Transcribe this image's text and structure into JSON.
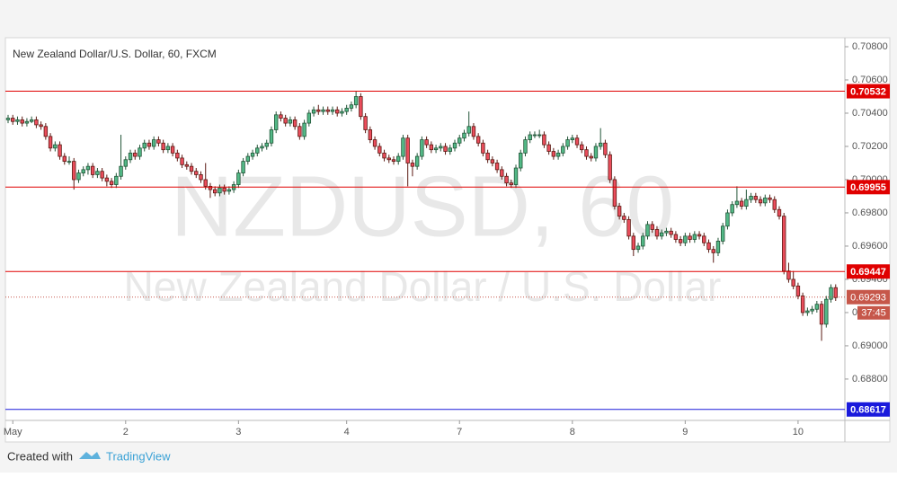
{
  "chart_data": {
    "type": "candlestick",
    "title": "New Zealand Dollar/U.S. Dollar, 60, FXCM",
    "watermark": "NZDUSD, 60",
    "watermark_subtitle": "New Zealand Dollar / U.S. Dollar",
    "up_color": "#53b987",
    "down_color": "#eb4d5c",
    "ylim": [
      0.68551,
      0.70854
    ],
    "yticks": [
      {
        "value": 0.708,
        "label": "0.70800"
      },
      {
        "value": 0.706,
        "label": "0.70600"
      },
      {
        "value": 0.704,
        "label": "0.70400"
      },
      {
        "value": 0.702,
        "label": "0.70200"
      },
      {
        "value": 0.7,
        "label": "0.70000"
      },
      {
        "value": 0.698,
        "label": "0.69800"
      },
      {
        "value": 0.696,
        "label": "0.69600"
      },
      {
        "value": 0.694,
        "label": "0.69400"
      },
      {
        "value": 0.692,
        "label": "0.69200"
      },
      {
        "value": 0.69,
        "label": "0.69000"
      },
      {
        "value": 0.688,
        "label": "0.68800"
      }
    ],
    "xlim": [
      0,
      177
    ],
    "xticks": [
      {
        "value": 1,
        "label": "May"
      },
      {
        "value": 25,
        "label": "2"
      },
      {
        "value": 49,
        "label": "3"
      },
      {
        "value": 72,
        "label": "4"
      },
      {
        "value": 96,
        "label": "7"
      },
      {
        "value": 120,
        "label": "8"
      },
      {
        "value": 144,
        "label": "9"
      },
      {
        "value": 168,
        "label": "10"
      }
    ],
    "hlines": [
      {
        "value": 0.70532,
        "color": "#e00000"
      },
      {
        "value": 0.69955,
        "color": "#e00000"
      },
      {
        "value": 0.69447,
        "color": "#e00000"
      },
      {
        "value": 0.68617,
        "color": "#1a1adc"
      }
    ],
    "last_price": {
      "value": 0.69293,
      "color": "#c6574a",
      "countdown": "37:45"
    },
    "ohlc": [
      [
        0.7036,
        0.7039,
        0.7034,
        0.7037
      ],
      [
        0.7037,
        0.7039,
        0.7033,
        0.7035
      ],
      [
        0.7035,
        0.7038,
        0.7033,
        0.7036
      ],
      [
        0.7036,
        0.7038,
        0.7032,
        0.7034
      ],
      [
        0.7034,
        0.7037,
        0.7032,
        0.7035
      ],
      [
        0.7035,
        0.7038,
        0.7034,
        0.7036
      ],
      [
        0.7036,
        0.7038,
        0.7031,
        0.7033
      ],
      [
        0.7033,
        0.7035,
        0.703,
        0.7032
      ],
      [
        0.7032,
        0.7034,
        0.7024,
        0.7026
      ],
      [
        0.7026,
        0.7028,
        0.7017,
        0.7019
      ],
      [
        0.7019,
        0.7023,
        0.7017,
        0.7021
      ],
      [
        0.7021,
        0.7023,
        0.7012,
        0.7014
      ],
      [
        0.7014,
        0.7016,
        0.7009,
        0.7011
      ],
      [
        0.7011,
        0.7014,
        0.7009,
        0.7011
      ],
      [
        0.7011,
        0.7013,
        0.6994,
        0.7
      ],
      [
        0.7,
        0.7006,
        0.6998,
        0.7004
      ],
      [
        0.7004,
        0.7008,
        0.7002,
        0.7006
      ],
      [
        0.7006,
        0.701,
        0.7003,
        0.7008
      ],
      [
        0.7008,
        0.701,
        0.7001,
        0.7003
      ],
      [
        0.7003,
        0.7007,
        0.7001,
        0.7005
      ],
      [
        0.7005,
        0.7007,
        0.6999,
        0.7001
      ],
      [
        0.7001,
        0.7003,
        0.6996,
        0.6999
      ],
      [
        0.6999,
        0.7001,
        0.6995,
        0.6997
      ],
      [
        0.6997,
        0.7004,
        0.6995,
        0.7002
      ],
      [
        0.7002,
        0.7027,
        0.7,
        0.7008
      ],
      [
        0.7008,
        0.7014,
        0.7006,
        0.7012
      ],
      [
        0.7012,
        0.7018,
        0.701,
        0.7016
      ],
      [
        0.7016,
        0.7018,
        0.7012,
        0.7014
      ],
      [
        0.7014,
        0.7021,
        0.7012,
        0.7019
      ],
      [
        0.7019,
        0.7024,
        0.7017,
        0.7022
      ],
      [
        0.7022,
        0.7024,
        0.7018,
        0.702
      ],
      [
        0.702,
        0.7026,
        0.7018,
        0.7024
      ],
      [
        0.7024,
        0.7026,
        0.702,
        0.7022
      ],
      [
        0.7022,
        0.7024,
        0.7016,
        0.7018
      ],
      [
        0.7018,
        0.7022,
        0.7016,
        0.702
      ],
      [
        0.702,
        0.7022,
        0.7014,
        0.7016
      ],
      [
        0.7016,
        0.7018,
        0.7011,
        0.7013
      ],
      [
        0.7013,
        0.7015,
        0.7007,
        0.7009
      ],
      [
        0.7009,
        0.7011,
        0.7006,
        0.7008
      ],
      [
        0.7008,
        0.701,
        0.7003,
        0.7005
      ],
      [
        0.7005,
        0.7007,
        0.7001,
        0.7003
      ],
      [
        0.7003,
        0.7005,
        0.6998,
        0.7
      ],
      [
        0.7,
        0.701,
        0.6994,
        0.6996
      ],
      [
        0.6996,
        0.6998,
        0.6989,
        0.6994
      ],
      [
        0.6994,
        0.6996,
        0.699,
        0.6992
      ],
      [
        0.6992,
        0.6997,
        0.699,
        0.6995
      ],
      [
        0.6995,
        0.6997,
        0.6991,
        0.6993
      ],
      [
        0.6993,
        0.6996,
        0.6991,
        0.6994
      ],
      [
        0.6994,
        0.6999,
        0.6992,
        0.6997
      ],
      [
        0.6997,
        0.7006,
        0.6995,
        0.7004
      ],
      [
        0.7004,
        0.7013,
        0.7002,
        0.7011
      ],
      [
        0.7011,
        0.7016,
        0.7009,
        0.7014
      ],
      [
        0.7014,
        0.7018,
        0.7012,
        0.7016
      ],
      [
        0.7016,
        0.7021,
        0.7014,
        0.7019
      ],
      [
        0.7019,
        0.7022,
        0.7017,
        0.702
      ],
      [
        0.702,
        0.7024,
        0.7018,
        0.7022
      ],
      [
        0.7022,
        0.7032,
        0.702,
        0.703
      ],
      [
        0.703,
        0.7041,
        0.7028,
        0.7039
      ],
      [
        0.7039,
        0.7041,
        0.7035,
        0.7037
      ],
      [
        0.7037,
        0.7039,
        0.7032,
        0.7034
      ],
      [
        0.7034,
        0.7038,
        0.7032,
        0.7036
      ],
      [
        0.7036,
        0.7038,
        0.703,
        0.7032
      ],
      [
        0.7032,
        0.7034,
        0.7024,
        0.7026
      ],
      [
        0.7026,
        0.7036,
        0.7024,
        0.7034
      ],
      [
        0.7034,
        0.7042,
        0.7032,
        0.704
      ],
      [
        0.704,
        0.7044,
        0.7038,
        0.7042
      ],
      [
        0.7042,
        0.7045,
        0.7039,
        0.7041
      ],
      [
        0.7041,
        0.7044,
        0.7039,
        0.7042
      ],
      [
        0.7042,
        0.7044,
        0.7039,
        0.7041
      ],
      [
        0.7041,
        0.7044,
        0.7039,
        0.7042
      ],
      [
        0.7042,
        0.7044,
        0.7038,
        0.704
      ],
      [
        0.704,
        0.7043,
        0.7038,
        0.7041
      ],
      [
        0.7041,
        0.7045,
        0.7039,
        0.7043
      ],
      [
        0.7043,
        0.7047,
        0.7041,
        0.7045
      ],
      [
        0.7045,
        0.7053,
        0.7043,
        0.705
      ],
      [
        0.705,
        0.7052,
        0.7036,
        0.7038
      ],
      [
        0.7038,
        0.704,
        0.7028,
        0.703
      ],
      [
        0.703,
        0.7032,
        0.7022,
        0.7024
      ],
      [
        0.7024,
        0.7026,
        0.7018,
        0.702
      ],
      [
        0.702,
        0.7022,
        0.7014,
        0.7016
      ],
      [
        0.7016,
        0.7018,
        0.7011,
        0.7013
      ],
      [
        0.7013,
        0.7015,
        0.701,
        0.7012
      ],
      [
        0.7012,
        0.7014,
        0.7009,
        0.7011
      ],
      [
        0.7011,
        0.7016,
        0.7009,
        0.7014
      ],
      [
        0.7014,
        0.7027,
        0.7012,
        0.7025
      ],
      [
        0.7025,
        0.7027,
        0.6996,
        0.701
      ],
      [
        0.701,
        0.7012,
        0.7002,
        0.7008
      ],
      [
        0.7008,
        0.7016,
        0.7006,
        0.7014
      ],
      [
        0.7014,
        0.7026,
        0.7012,
        0.7024
      ],
      [
        0.7024,
        0.7026,
        0.7019,
        0.7021
      ],
      [
        0.7021,
        0.7023,
        0.7016,
        0.7018
      ],
      [
        0.7018,
        0.7021,
        0.7016,
        0.7019
      ],
      [
        0.7019,
        0.7022,
        0.7017,
        0.702
      ],
      [
        0.702,
        0.7022,
        0.7015,
        0.7017
      ],
      [
        0.7017,
        0.7021,
        0.7015,
        0.7019
      ],
      [
        0.7019,
        0.7024,
        0.7017,
        0.7022
      ],
      [
        0.7022,
        0.7027,
        0.702,
        0.7025
      ],
      [
        0.7025,
        0.703,
        0.7023,
        0.7028
      ],
      [
        0.7028,
        0.7041,
        0.7026,
        0.7032
      ],
      [
        0.7032,
        0.7034,
        0.7024,
        0.7026
      ],
      [
        0.7026,
        0.7028,
        0.702,
        0.7022
      ],
      [
        0.7022,
        0.7024,
        0.7014,
        0.7016
      ],
      [
        0.7016,
        0.7018,
        0.701,
        0.7012
      ],
      [
        0.7012,
        0.7014,
        0.7008,
        0.701
      ],
      [
        0.701,
        0.7012,
        0.7004,
        0.7006
      ],
      [
        0.7006,
        0.7008,
        0.7,
        0.7002
      ],
      [
        0.7002,
        0.7004,
        0.6996,
        0.6998
      ],
      [
        0.6998,
        0.7,
        0.6995,
        0.6997
      ],
      [
        0.6997,
        0.7009,
        0.6995,
        0.7007
      ],
      [
        0.7007,
        0.7018,
        0.7005,
        0.7016
      ],
      [
        0.7016,
        0.7026,
        0.7014,
        0.7024
      ],
      [
        0.7024,
        0.7029,
        0.7022,
        0.7027
      ],
      [
        0.7027,
        0.7029,
        0.7025,
        0.7027
      ],
      [
        0.7027,
        0.703,
        0.7025,
        0.7027
      ],
      [
        0.7027,
        0.7029,
        0.7019,
        0.7021
      ],
      [
        0.7021,
        0.7023,
        0.7015,
        0.7017
      ],
      [
        0.7017,
        0.7019,
        0.7012,
        0.7014
      ],
      [
        0.7014,
        0.7018,
        0.7012,
        0.7016
      ],
      [
        0.7016,
        0.7022,
        0.7014,
        0.702
      ],
      [
        0.702,
        0.7026,
        0.7018,
        0.7024
      ],
      [
        0.7024,
        0.7027,
        0.7022,
        0.7025
      ],
      [
        0.7025,
        0.7027,
        0.7019,
        0.7021
      ],
      [
        0.7021,
        0.7023,
        0.7016,
        0.7018
      ],
      [
        0.7018,
        0.702,
        0.7012,
        0.7014
      ],
      [
        0.7014,
        0.7016,
        0.7011,
        0.7013
      ],
      [
        0.7013,
        0.7022,
        0.7011,
        0.702
      ],
      [
        0.702,
        0.7031,
        0.7018,
        0.7022
      ],
      [
        0.7022,
        0.7024,
        0.7013,
        0.7015
      ],
      [
        0.7015,
        0.7017,
        0.6998,
        0.7
      ],
      [
        0.7,
        0.7002,
        0.6982,
        0.6984
      ],
      [
        0.6984,
        0.6986,
        0.6976,
        0.6978
      ],
      [
        0.6978,
        0.698,
        0.6974,
        0.6976
      ],
      [
        0.6976,
        0.6978,
        0.6964,
        0.6966
      ],
      [
        0.6966,
        0.6968,
        0.6954,
        0.6958
      ],
      [
        0.6958,
        0.6962,
        0.6956,
        0.696
      ],
      [
        0.696,
        0.6968,
        0.6958,
        0.6966
      ],
      [
        0.6966,
        0.6975,
        0.6964,
        0.6973
      ],
      [
        0.6973,
        0.6975,
        0.6968,
        0.697
      ],
      [
        0.697,
        0.6972,
        0.6964,
        0.6966
      ],
      [
        0.6966,
        0.697,
        0.6964,
        0.6968
      ],
      [
        0.6968,
        0.6971,
        0.6966,
        0.6969
      ],
      [
        0.6969,
        0.6971,
        0.6965,
        0.6967
      ],
      [
        0.6967,
        0.6969,
        0.6962,
        0.6964
      ],
      [
        0.6964,
        0.6966,
        0.696,
        0.6962
      ],
      [
        0.6962,
        0.6968,
        0.696,
        0.6966
      ],
      [
        0.6966,
        0.6968,
        0.6962,
        0.6964
      ],
      [
        0.6964,
        0.6969,
        0.6962,
        0.6967
      ],
      [
        0.6967,
        0.6969,
        0.6964,
        0.6966
      ],
      [
        0.6966,
        0.6968,
        0.696,
        0.6962
      ],
      [
        0.6962,
        0.6964,
        0.6956,
        0.6958
      ],
      [
        0.6958,
        0.696,
        0.695,
        0.6956
      ],
      [
        0.6956,
        0.6965,
        0.6954,
        0.6963
      ],
      [
        0.6963,
        0.6974,
        0.6961,
        0.6972
      ],
      [
        0.6972,
        0.6982,
        0.697,
        0.698
      ],
      [
        0.698,
        0.6987,
        0.6978,
        0.6985
      ],
      [
        0.6985,
        0.6996,
        0.6983,
        0.6987
      ],
      [
        0.6987,
        0.6989,
        0.6982,
        0.6984
      ],
      [
        0.6984,
        0.6994,
        0.6982,
        0.6988
      ],
      [
        0.6988,
        0.6992,
        0.6986,
        0.699
      ],
      [
        0.699,
        0.6992,
        0.6986,
        0.6988
      ],
      [
        0.6988,
        0.699,
        0.6984,
        0.6986
      ],
      [
        0.6986,
        0.6991,
        0.6984,
        0.6989
      ],
      [
        0.6989,
        0.6991,
        0.6986,
        0.6988
      ],
      [
        0.6988,
        0.699,
        0.698,
        0.6982
      ],
      [
        0.6982,
        0.6984,
        0.6976,
        0.6978
      ],
      [
        0.6978,
        0.698,
        0.6943,
        0.6945
      ],
      [
        0.6945,
        0.695,
        0.6938,
        0.694
      ],
      [
        0.694,
        0.6945,
        0.6934,
        0.6936
      ],
      [
        0.6936,
        0.6938,
        0.6928,
        0.693
      ],
      [
        0.693,
        0.6932,
        0.6918,
        0.692
      ],
      [
        0.692,
        0.6923,
        0.6918,
        0.6921
      ],
      [
        0.6921,
        0.6924,
        0.6919,
        0.6922
      ],
      [
        0.6922,
        0.6927,
        0.692,
        0.6925
      ],
      [
        0.6925,
        0.6927,
        0.6903,
        0.6913
      ],
      [
        0.6913,
        0.693,
        0.6911,
        0.6928
      ],
      [
        0.6928,
        0.6937,
        0.6926,
        0.6935
      ],
      [
        0.6935,
        0.6937,
        0.6927,
        0.6929
      ]
    ]
  },
  "footer": {
    "created_with": "Created with",
    "brand": "TradingView"
  }
}
